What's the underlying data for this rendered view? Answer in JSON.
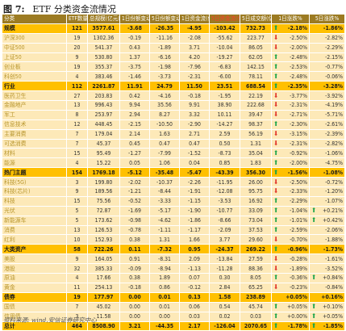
{
  "title": {
    "prefix": "图 7:",
    "main": "ETF 分类资金流情况"
  },
  "colors": {
    "header_bg": "#9c7b22",
    "category_bg": "#ffc000",
    "sub_bg": "#fde9b8",
    "up_arrow": "#17a34a",
    "down_arrow": "#e0332b"
  },
  "headers": [
    {
      "text": "分类",
      "red": false
    },
    {
      "text": "ETF数量",
      "red": false
    },
    {
      "text": "总规模(亿元)",
      "red": false
    },
    {
      "text": "1日份额变动(亿)",
      "red": false
    },
    {
      "text": "5日份额变动(亿)",
      "red": false
    },
    {
      "text": "1日资金流(亿元)",
      "red": false
    },
    {
      "text": "5日资金流(亿元)",
      "red": true
    },
    {
      "text": "5日成交额(亿元)",
      "red": false
    },
    {
      "text": "1日涨跌%",
      "red": false
    },
    {
      "text": "5日涨跌%",
      "red": false
    }
  ],
  "rows": [
    {
      "type": "cat",
      "cells": [
        "规模",
        "121",
        "3577.61",
        "-3.68",
        "-26.35",
        "-4.95",
        "-103.42",
        "732.73"
      ],
      "r1": "-2.18%",
      "a1": "up",
      "r5": "-1.86%",
      "a5": "none"
    },
    {
      "type": "sub",
      "cells": [
        "沪深300",
        "19",
        "1302.36",
        "-0.19",
        "-11.16",
        "-2.08",
        "-55.62",
        "223.77"
      ],
      "r1": "-2.50%",
      "a1": "down",
      "r5": "-2.82%",
      "a5": "none"
    },
    {
      "type": "sub",
      "cells": [
        "中证500",
        "20",
        "541.37",
        "0.43",
        "-1.89",
        "3.71",
        "-10.04",
        "86.05"
      ],
      "r1": "-2.00%",
      "a1": "down",
      "r5": "-2.29%",
      "a5": "none"
    },
    {
      "type": "sub",
      "cells": [
        "上证50",
        "9",
        "530.80",
        "1.37",
        "-6.16",
        "4.20",
        "-19.27",
        "62.05"
      ],
      "r1": "-2.48%",
      "a1": "up",
      "r5": "-2.15%",
      "a5": "none"
    },
    {
      "type": "sub",
      "cells": [
        "创业板",
        "19",
        "355.37",
        "-3.75",
        "-1.98",
        "-7.96",
        "-6.83",
        "142.15"
      ],
      "r1": "-2.53%",
      "a1": "up",
      "r5": "-0.77%",
      "a5": "none"
    },
    {
      "type": "sub",
      "cells": [
        "科创50",
        "4",
        "383.46",
        "-1.46",
        "-3.73",
        "-2.31",
        "-6.00",
        "78.11"
      ],
      "r1": "-2.48%",
      "a1": "up",
      "r5": "-0.06%",
      "a5": "none"
    },
    {
      "type": "cat",
      "cells": [
        "行业",
        "112",
        "2261.87",
        "11.91",
        "24.79",
        "11.50",
        "23.51",
        "688.54"
      ],
      "r1": "-2.35%",
      "a1": "up",
      "r5": "-3.28%",
      "a5": "none"
    },
    {
      "type": "sub",
      "cells": [
        "医药卫生",
        "27",
        "203.83",
        "0.42",
        "-4.16",
        "-0.18",
        "-1.95",
        "22.19"
      ],
      "r1": "-3.77%",
      "a1": "down",
      "r5": "-3.92%",
      "a5": "none"
    },
    {
      "type": "sub",
      "cells": [
        "金融地产",
        "13",
        "996.43",
        "9.94",
        "35.56",
        "9.91",
        "38.90",
        "222.68"
      ],
      "r1": "-2.31%",
      "a1": "down",
      "r5": "-4.19%",
      "a5": "none"
    },
    {
      "type": "sub",
      "cells": [
        "军工",
        "8",
        "253.97",
        "2.94",
        "8.27",
        "3.32",
        "10.11",
        "39.47"
      ],
      "r1": "-2.71%",
      "a1": "down",
      "r5": "-5.71%",
      "a5": "none"
    },
    {
      "type": "sub",
      "cells": [
        "信息技术",
        "12",
        "448.45",
        "-2.15",
        "-10.50",
        "-2.90",
        "-14.27",
        "98.37"
      ],
      "r1": "-2.30%",
      "a1": "up",
      "r5": "-2.61%",
      "a5": "none"
    },
    {
      "type": "sub",
      "cells": [
        "主要消费",
        "7",
        "179.04",
        "2.14",
        "1.63",
        "2.71",
        "2.59",
        "56.19"
      ],
      "r1": "-3.15%",
      "a1": "down",
      "r5": "-2.39%",
      "a5": "none"
    },
    {
      "type": "sub",
      "cells": [
        "可选消费",
        "7",
        "45.37",
        "0.45",
        "0.47",
        "0.47",
        "0.50",
        "1.31"
      ],
      "r1": "-2.31%",
      "a1": "down",
      "r5": "-2.82%",
      "a5": "none"
    },
    {
      "type": "sub",
      "cells": [
        "材料",
        "15",
        "95.49",
        "-1.27",
        "-7.99",
        "-1.52",
        "-8.73",
        "35.04"
      ],
      "r1": "-0.92%",
      "a1": "up",
      "r5": "-1.06%",
      "a5": "none"
    },
    {
      "type": "sub",
      "cells": [
        "能源",
        "4",
        "15.22",
        "0.05",
        "1.06",
        "0.04",
        "0.85",
        "1.83"
      ],
      "r1": "-2.00%",
      "a1": "up",
      "r5": "-4.75%",
      "a5": "none"
    },
    {
      "type": "cat",
      "cells": [
        "热门主题",
        "154",
        "1769.18",
        "-5.12",
        "-35.48",
        "-5.47",
        "-43.39",
        "356.30"
      ],
      "r1": "-1.56%",
      "a1": "up",
      "r5": "-1.08%",
      "a5": "none"
    },
    {
      "type": "sub",
      "cells": [
        "科技(5G)",
        "3",
        "199.80",
        "-2.02",
        "-10.37",
        "-2.26",
        "-11.95",
        "26.00"
      ],
      "r1": "-2.50%",
      "a1": "down",
      "r5": "-0.72%",
      "a5": "none"
    },
    {
      "type": "sub",
      "cells": [
        "科技(芯片)",
        "9",
        "189.56",
        "-1.21",
        "-8.44",
        "-1.91",
        "-12.08",
        "95.75"
      ],
      "r1": "-2.33%",
      "a1": "down",
      "r5": "-1.20%",
      "a5": "none"
    },
    {
      "type": "sub",
      "cells": [
        "科技",
        "15",
        "75.56",
        "-0.52",
        "-3.33",
        "-1.15",
        "-3.53",
        "16.92"
      ],
      "r1": "-2.29%",
      "a1": "up",
      "r5": "-1.07%",
      "a5": "none"
    },
    {
      "type": "sub",
      "cells": [
        "光伏",
        "5",
        "72.87",
        "-1.69",
        "-5.17",
        "-1.90",
        "-10.77",
        "33.09"
      ],
      "r1": "-1.04%",
      "a1": "up",
      "r5": "+0.21%",
      "a5": "up"
    },
    {
      "type": "sub",
      "cells": [
        "新能源车",
        "5",
        "173.62",
        "-0.98",
        "-4.62",
        "-1.86",
        "-8.66",
        "73.04"
      ],
      "r1": "-1.01%",
      "a1": "up",
      "r5": "+0.42%",
      "a5": "up"
    },
    {
      "type": "sub",
      "cells": [
        "消费",
        "13",
        "126.53",
        "-0.78",
        "-1.11",
        "-1.17",
        "-2.09",
        "37.53"
      ],
      "r1": "-2.59%",
      "a1": "up",
      "r5": "-2.06%",
      "a5": "none"
    },
    {
      "type": "sub",
      "cells": [
        "红利",
        "10",
        "152.93",
        "0.38",
        "1.31",
        "1.66",
        "3.77",
        "29.60"
      ],
      "r1": "-0.70%",
      "a1": "down",
      "r5": "-1.88%",
      "a5": "none"
    },
    {
      "type": "cat",
      "cells": [
        "大类资产",
        "58",
        "722.26",
        "0.11",
        "-7.32",
        "0.95",
        "-24.37",
        "269.22"
      ],
      "r1": "-0.96%",
      "a1": "up",
      "r5": "-1.73%",
      "a5": "none"
    },
    {
      "type": "sub",
      "cells": [
        "美股",
        "9",
        "164.05",
        "0.91",
        "-8.31",
        "2.09",
        "-13.84",
        "27.59"
      ],
      "r1": "-0.28%",
      "a1": "down",
      "r5": "-1.61%",
      "a5": "none"
    },
    {
      "type": "sub",
      "cells": [
        "港股",
        "32",
        "385.33",
        "-0.09",
        "-8.94",
        "-1.13",
        "-11.28",
        "88.36"
      ],
      "r1": "-1.89%",
      "a1": "down",
      "r5": "-3.52%",
      "a5": "none"
    },
    {
      "type": "sub",
      "cells": [
        "原油",
        "4",
        "17.66",
        "0.38",
        "1.89",
        "0.07",
        "0.30",
        "8.05"
      ],
      "r1": "-0.36%",
      "a1": "up",
      "r5": "+0.84%",
      "a5": "up"
    },
    {
      "type": "sub",
      "cells": [
        "黄金",
        "11",
        "254.13",
        "-0.18",
        "0.86",
        "-0.12",
        "2.84",
        "65.25"
      ],
      "r1": "-0.23%",
      "a1": "down",
      "r5": "-0.84%",
      "a5": "none"
    },
    {
      "type": "cat",
      "cells": [
        "债券",
        "19",
        "177.97",
        "0.00",
        "0.01",
        "0.13",
        "1.58",
        "238.89"
      ],
      "r1": "+0.05%",
      "a1": "none",
      "r5": "+0.16%",
      "a5": "none"
    },
    {
      "type": "sub",
      "cells": [
        "国债",
        "7",
        "45.02",
        "0.00",
        "0.01",
        "0.06",
        "0.54",
        "45.74"
      ],
      "r1": "+0.05%",
      "a1": "up",
      "r5": "+0.10%",
      "a5": "up"
    },
    {
      "type": "sub",
      "cells": [
        "信用债",
        "3",
        "11.58",
        "0.00",
        "0.00",
        "0.03",
        "0.02",
        "0.03"
      ],
      "r1": "+0.00%",
      "a1": "up",
      "r5": "+0.05%",
      "a5": "up"
    },
    {
      "type": "cat",
      "cells": [
        "总计",
        "464",
        "8508.90",
        "3.21",
        "-44.35",
        "2.17",
        "-126.04",
        "2070.65"
      ],
      "r1": "-1.78%",
      "a1": "up",
      "r5": "-1.85%",
      "a5": "up"
    }
  ],
  "footer": "资料来源: wind,安信证券研究中心"
}
